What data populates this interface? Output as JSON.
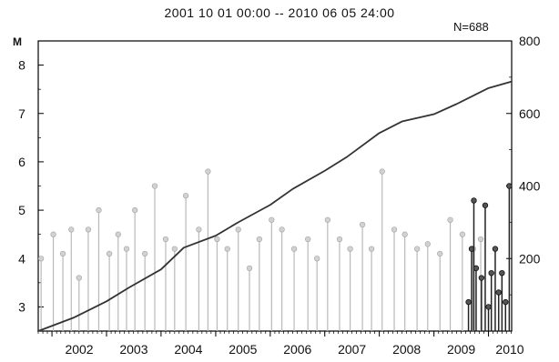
{
  "chart_data": {
    "type": "line",
    "title": "2001 10 01 00:00 -- 2010 06 05 24:00",
    "count_label": "N=688",
    "left_axis_unit": "M",
    "left_axis": {
      "ticks": [
        3,
        4,
        5,
        6,
        7,
        8
      ],
      "range": [
        2.5,
        8.5
      ]
    },
    "right_axis": {
      "ticks": [
        200,
        400,
        600,
        800
      ],
      "range": [
        0,
        800
      ]
    },
    "x_axis": {
      "start": "2001-10-01",
      "end": "2010-06-05",
      "labels": [
        "2002",
        "2003",
        "2004",
        "2005",
        "2006",
        "2007",
        "2008",
        "2009",
        "2010"
      ]
    },
    "series": [
      {
        "type": "line",
        "axis": "right",
        "x": [
          "2001-10-01",
          "2002-06-01",
          "2003-01-01",
          "2003-06-01",
          "2004-01-01",
          "2004-06-01",
          "2005-01-01",
          "2005-06-01",
          "2006-01-01",
          "2006-06-01",
          "2007-01-01",
          "2007-06-01",
          "2008-01-01",
          "2008-06-01",
          "2009-01-01",
          "2009-06-01",
          "2010-01-01",
          "2010-06-05"
        ],
        "values": [
          0,
          38,
          82,
          120,
          170,
          230,
          263,
          300,
          348,
          392,
          442,
          481,
          546,
          578,
          598,
          626,
          670,
          688
        ]
      },
      {
        "type": "stem",
        "axis": "left",
        "name": "",
        "x": [
          "2001-10-20",
          "2002-01-10",
          "2002-03-15",
          "2002-05-10",
          "2002-07-01",
          "2002-09-01",
          "2002-11-10",
          "2003-01-20",
          "2003-03-20",
          "2003-05-15",
          "2003-07-10",
          "2003-09-15",
          "2003-11-20",
          "2004-02-01",
          "2004-04-01",
          "2004-06-15",
          "2004-09-10",
          "2004-11-10",
          "2005-01-10",
          "2005-03-20",
          "2005-06-01",
          "2005-08-15",
          "2005-10-20",
          "2006-01-10",
          "2006-03-20",
          "2006-06-10",
          "2006-09-10",
          "2006-11-10",
          "2007-01-20",
          "2007-04-10",
          "2007-06-20",
          "2007-09-10",
          "2007-11-10",
          "2008-01-20",
          "2008-04-10",
          "2008-06-20",
          "2008-09-10",
          "2008-11-20",
          "2009-02-10",
          "2009-04-20",
          "2009-07-10",
          "2009-09-20",
          "2009-11-10"
        ],
        "values": [
          4.0,
          4.5,
          4.1,
          4.6,
          3.6,
          4.6,
          5.0,
          4.1,
          4.5,
          4.2,
          5.0,
          4.1,
          5.5,
          4.4,
          4.2,
          5.3,
          4.6,
          5.8,
          4.4,
          4.2,
          4.6,
          3.8,
          4.4,
          4.8,
          4.6,
          4.2,
          4.4,
          4.0,
          4.8,
          4.4,
          4.2,
          4.7,
          4.2,
          5.8,
          4.6,
          4.5,
          4.2,
          4.3,
          4.1,
          4.8,
          4.5,
          4.2,
          4.4
        ]
      },
      {
        "type": "stem",
        "axis": "left",
        "name": "",
        "x": [
          "2009-08-20",
          "2009-09-10",
          "2009-09-25",
          "2009-10-10",
          "2009-11-15",
          "2009-12-10",
          "2010-01-01",
          "2010-01-20",
          "2010-02-15",
          "2010-03-10",
          "2010-04-01",
          "2010-04-25",
          "2010-05-20"
        ],
        "values": [
          3.1,
          4.2,
          5.2,
          3.8,
          3.6,
          5.1,
          3.0,
          3.7,
          4.2,
          3.3,
          3.7,
          3.1,
          5.5
        ]
      }
    ]
  }
}
